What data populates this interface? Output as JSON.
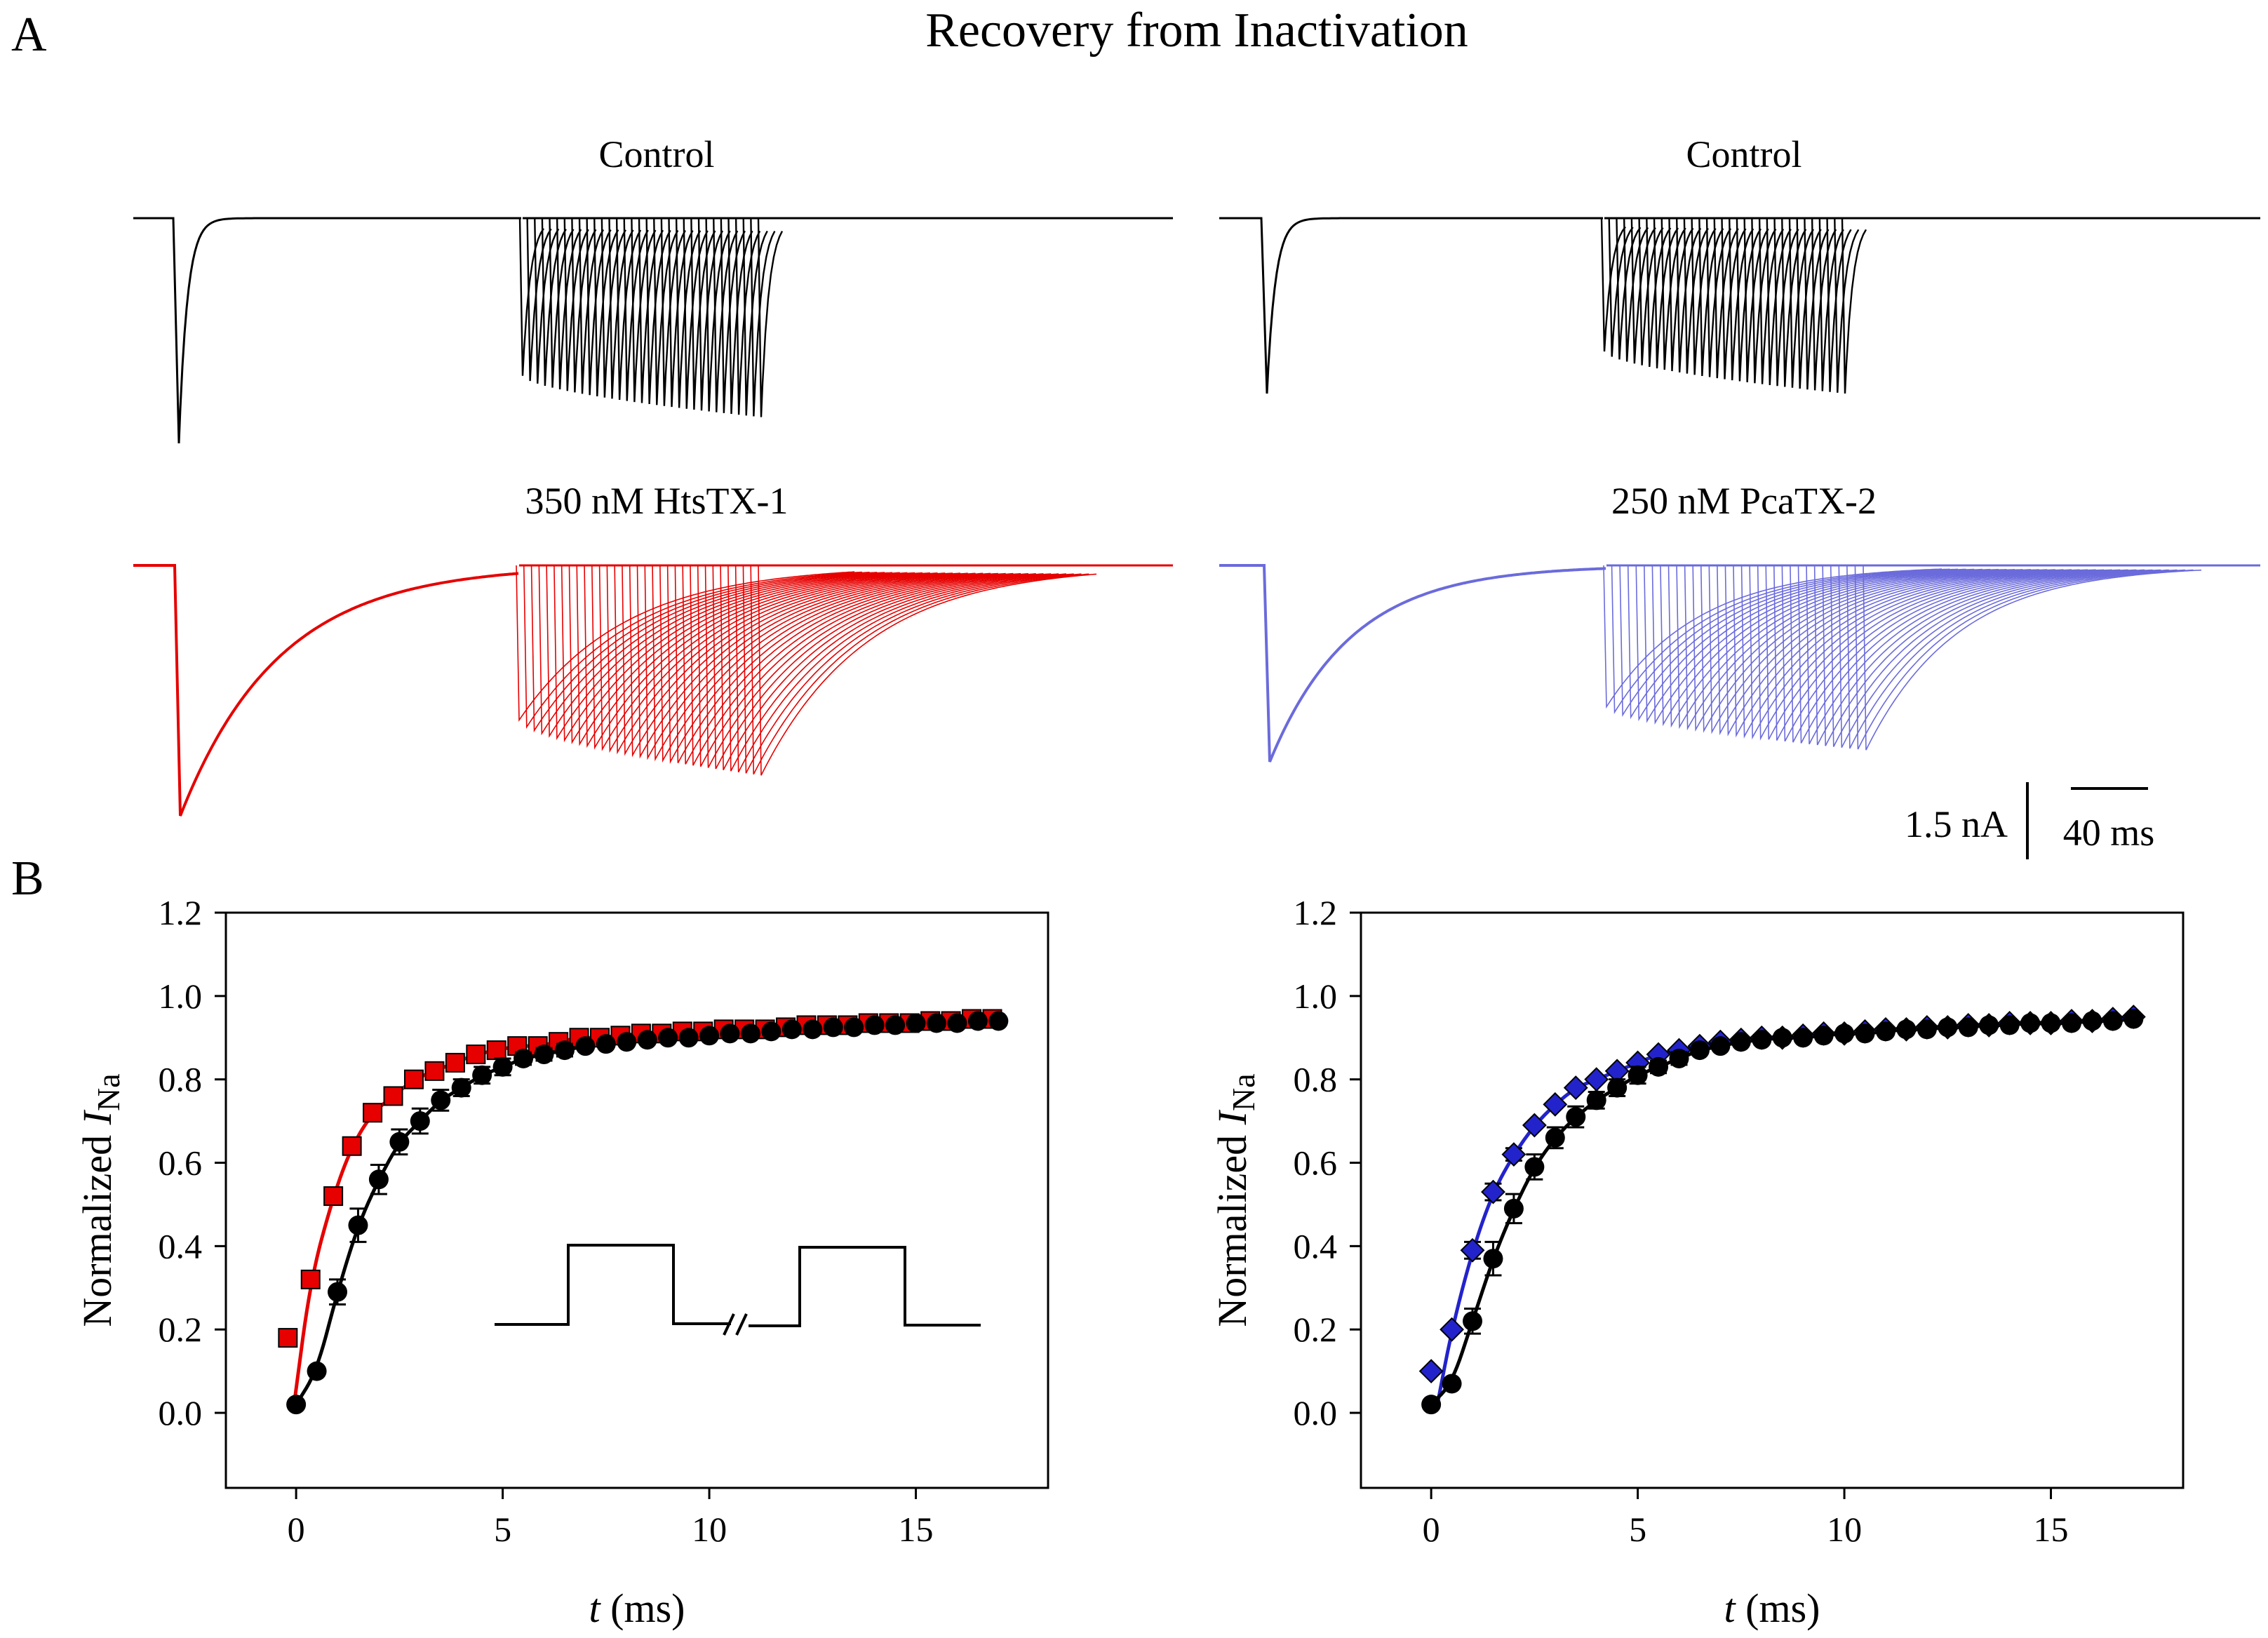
{
  "figure": {
    "title": "Recovery from Inactivation",
    "panel_a_label": "A",
    "panel_b_label": "B",
    "colors": {
      "control": "#000000",
      "htstx": "#e60000",
      "pcatx": "#2323cc",
      "pcatx_trace": "#6b6bdc"
    }
  },
  "panel_a": {
    "traces": [
      {
        "label": "Control",
        "color": "#000000",
        "peak_nA": -3.0,
        "sweeps": 33,
        "min_peak_nA": -2.65,
        "max_peak_nA": -2.1
      },
      {
        "label": "Control",
        "color": "#000000",
        "peak_nA": -2.5,
        "sweeps": 33,
        "min_peak_nA": -2.5,
        "max_peak_nA": -1.9
      },
      {
        "label": "350 nM HtsTX-1",
        "color": "#e60000",
        "peak_nA": -3.4,
        "sweeps": 33,
        "min_peak_nA": -2.85,
        "max_peak_nA": -2.1
      },
      {
        "label": "250 nM PcaTX-2",
        "color": "#6b6bdc",
        "peak_nA": -2.5,
        "sweeps": 33,
        "min_peak_nA": -2.35,
        "max_peak_nA": -1.8
      }
    ],
    "scalebar": {
      "current_label": "1.5 nA",
      "time_label": "40 ms"
    }
  },
  "chart_data": [
    {
      "type": "scatter",
      "xlabel_italic": "t",
      "xlabel_rest": " (ms)",
      "ylabel_prefix": "Normalized ",
      "ylabel_italic": "I",
      "ylabel_sub": "Na",
      "xlim": [
        -1.7,
        18.2
      ],
      "ylim": [
        -0.18,
        1.2
      ],
      "xticks": [
        0,
        5,
        10,
        15
      ],
      "yticks": [
        0.0,
        0.2,
        0.4,
        0.6,
        0.8,
        1.0,
        1.2
      ],
      "ytick_labels": [
        "0.0",
        "0.2",
        "0.4",
        "0.6",
        "0.8",
        "1.0",
        "1.2"
      ],
      "inset": "double-pulse voltage protocol",
      "series": [
        {
          "name": "Control",
          "marker": "circle",
          "color": "#000000",
          "x": [
            0,
            0.5,
            1,
            1.5,
            2,
            2.5,
            3,
            3.5,
            4,
            4.5,
            5,
            5.5,
            6,
            6.5,
            7,
            7.5,
            8,
            8.5,
            9,
            9.5,
            10,
            10.5,
            11,
            11.5,
            12,
            12.5,
            13,
            13.5,
            14,
            14.5,
            15,
            15.5,
            16,
            16.5,
            17
          ],
          "values": [
            0.02,
            0.1,
            0.29,
            0.45,
            0.56,
            0.65,
            0.7,
            0.75,
            0.78,
            0.81,
            0.83,
            0.85,
            0.86,
            0.87,
            0.88,
            0.885,
            0.89,
            0.895,
            0.9,
            0.9,
            0.905,
            0.91,
            0.91,
            0.915,
            0.92,
            0.92,
            0.925,
            0.925,
            0.93,
            0.93,
            0.935,
            0.935,
            0.935,
            0.94,
            0.94
          ],
          "errors": [
            0.01,
            0.01,
            0.03,
            0.04,
            0.035,
            0.03,
            0.03,
            0.025,
            0.02,
            0.02,
            0.02,
            0.015,
            0.015,
            0.015,
            0.01,
            0.01,
            0.01,
            0.01,
            0.01,
            0.01,
            0.01,
            0.01,
            0.01,
            0.01,
            0.01,
            0.01,
            0.01,
            0.01,
            0.01,
            0.01,
            0.01,
            0.01,
            0.01,
            0.01,
            0.01
          ]
        },
        {
          "name": "350 nM HtsTX-1",
          "marker": "square",
          "color": "#e60000",
          "x": [
            -0.2,
            0.35,
            0.9,
            1.35,
            1.85,
            2.35,
            2.85,
            3.35,
            3.85,
            4.35,
            4.85,
            5.35,
            5.85,
            6.35,
            6.85,
            7.35,
            7.85,
            8.35,
            8.85,
            9.35,
            9.85,
            10.35,
            10.85,
            11.35,
            11.85,
            12.35,
            12.85,
            13.35,
            13.85,
            14.35,
            14.85,
            15.35,
            15.85,
            16.35,
            16.85
          ],
          "values": [
            0.18,
            0.32,
            0.52,
            0.64,
            0.72,
            0.76,
            0.8,
            0.82,
            0.84,
            0.86,
            0.87,
            0.88,
            0.88,
            0.89,
            0.9,
            0.9,
            0.905,
            0.91,
            0.91,
            0.915,
            0.915,
            0.92,
            0.92,
            0.92,
            0.925,
            0.93,
            0.93,
            0.93,
            0.935,
            0.935,
            0.935,
            0.94,
            0.94,
            0.945,
            0.945
          ],
          "errors": [
            0.01,
            0.01,
            0.02,
            0.02,
            0.015,
            0.01,
            0.01,
            0.01,
            0.01,
            0.01,
            0.01,
            0.01,
            0.01,
            0.01,
            0.01,
            0.01,
            0.01,
            0.01,
            0.01,
            0.01,
            0.01,
            0.01,
            0.01,
            0.01,
            0.01,
            0.01,
            0.01,
            0.01,
            0.01,
            0.01,
            0.01,
            0.01,
            0.01,
            0.01,
            0.01
          ]
        }
      ]
    },
    {
      "type": "scatter",
      "xlabel_italic": "t",
      "xlabel_rest": " (ms)",
      "ylabel_prefix": "Normalized ",
      "ylabel_italic": "I",
      "ylabel_sub": "Na",
      "xlim": [
        -1.7,
        18.2
      ],
      "ylim": [
        -0.18,
        1.2
      ],
      "xticks": [
        0,
        5,
        10,
        15
      ],
      "yticks": [
        0.0,
        0.2,
        0.4,
        0.6,
        0.8,
        1.0,
        1.2
      ],
      "ytick_labels": [
        "0.0",
        "0.2",
        "0.4",
        "0.6",
        "0.8",
        "1.0",
        "1.2"
      ],
      "series": [
        {
          "name": "Control",
          "marker": "circle",
          "color": "#000000",
          "x": [
            0,
            0.5,
            1,
            1.5,
            2,
            2.5,
            3,
            3.5,
            4,
            4.5,
            5,
            5.5,
            6,
            6.5,
            7,
            7.5,
            8,
            8.5,
            9,
            9.5,
            10,
            10.5,
            11,
            11.5,
            12,
            12.5,
            13,
            13.5,
            14,
            14.5,
            15,
            15.5,
            16,
            16.5,
            17
          ],
          "values": [
            0.02,
            0.07,
            0.22,
            0.37,
            0.49,
            0.59,
            0.66,
            0.71,
            0.75,
            0.78,
            0.81,
            0.83,
            0.85,
            0.87,
            0.88,
            0.89,
            0.895,
            0.9,
            0.9,
            0.905,
            0.91,
            0.91,
            0.915,
            0.92,
            0.92,
            0.925,
            0.925,
            0.93,
            0.93,
            0.935,
            0.935,
            0.935,
            0.94,
            0.94,
            0.945
          ],
          "errors": [
            0.01,
            0.01,
            0.03,
            0.04,
            0.035,
            0.03,
            0.025,
            0.025,
            0.02,
            0.02,
            0.02,
            0.015,
            0.015,
            0.01,
            0.01,
            0.01,
            0.01,
            0.01,
            0.01,
            0.01,
            0.01,
            0.01,
            0.01,
            0.01,
            0.01,
            0.01,
            0.01,
            0.01,
            0.01,
            0.01,
            0.01,
            0.01,
            0.01,
            0.01,
            0.01
          ]
        },
        {
          "name": "250 nM PcaTX-2",
          "marker": "diamond",
          "color": "#2323cc",
          "x": [
            0,
            0.5,
            1,
            1.5,
            2,
            2.5,
            3,
            3.5,
            4,
            4.5,
            5,
            5.5,
            6,
            6.5,
            7,
            7.5,
            8,
            8.5,
            9,
            9.5,
            10,
            10.5,
            11,
            11.5,
            12,
            12.5,
            13,
            13.5,
            14,
            14.5,
            15,
            15.5,
            16,
            16.5,
            17
          ],
          "values": [
            0.1,
            0.2,
            0.39,
            0.53,
            0.62,
            0.69,
            0.74,
            0.78,
            0.8,
            0.82,
            0.84,
            0.86,
            0.87,
            0.88,
            0.89,
            0.895,
            0.9,
            0.9,
            0.905,
            0.91,
            0.91,
            0.915,
            0.92,
            0.92,
            0.925,
            0.925,
            0.93,
            0.93,
            0.935,
            0.935,
            0.935,
            0.94,
            0.94,
            0.945,
            0.95
          ],
          "errors": [
            0.01,
            0.01,
            0.02,
            0.02,
            0.015,
            0.01,
            0.01,
            0.01,
            0.01,
            0.01,
            0.01,
            0.01,
            0.01,
            0.01,
            0.01,
            0.01,
            0.01,
            0.01,
            0.01,
            0.01,
            0.01,
            0.01,
            0.01,
            0.01,
            0.01,
            0.01,
            0.01,
            0.01,
            0.01,
            0.01,
            0.01,
            0.01,
            0.01,
            0.01,
            0.01
          ]
        }
      ]
    }
  ]
}
